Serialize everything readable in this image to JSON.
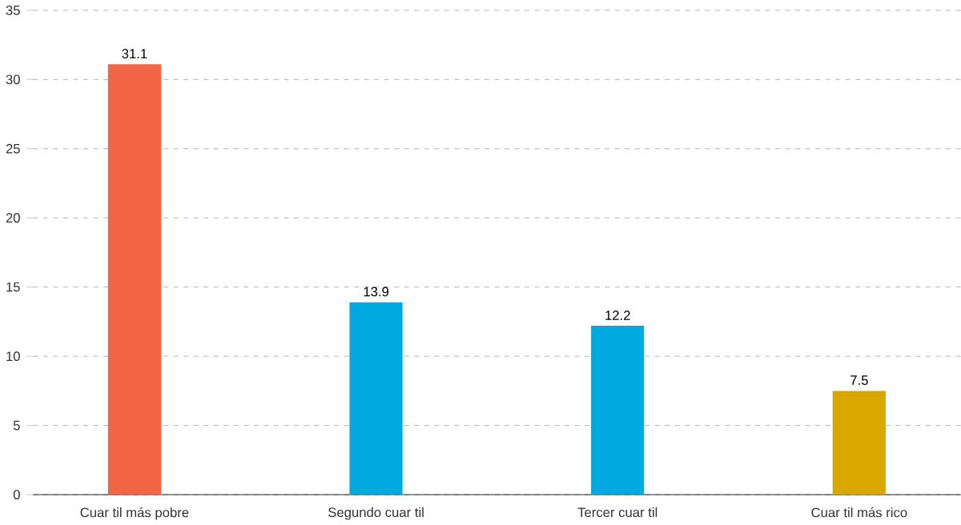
{
  "chart_data": {
    "type": "bar",
    "categories": [
      "Cuar til más pobre",
      "Segundo cuar   til",
      "Tercer cuar  til",
      "Cuar til más rico"
    ],
    "values": [
      31.1,
      13.9,
      12.2,
      7.5
    ],
    "colors": [
      "#f26645",
      "#00a9e0",
      "#00a9e0",
      "#d9a800"
    ],
    "ylim": [
      0,
      35
    ],
    "yticks": [
      0,
      5,
      10,
      15,
      20,
      25,
      30,
      35
    ],
    "grid": "y",
    "data_labels": true
  }
}
